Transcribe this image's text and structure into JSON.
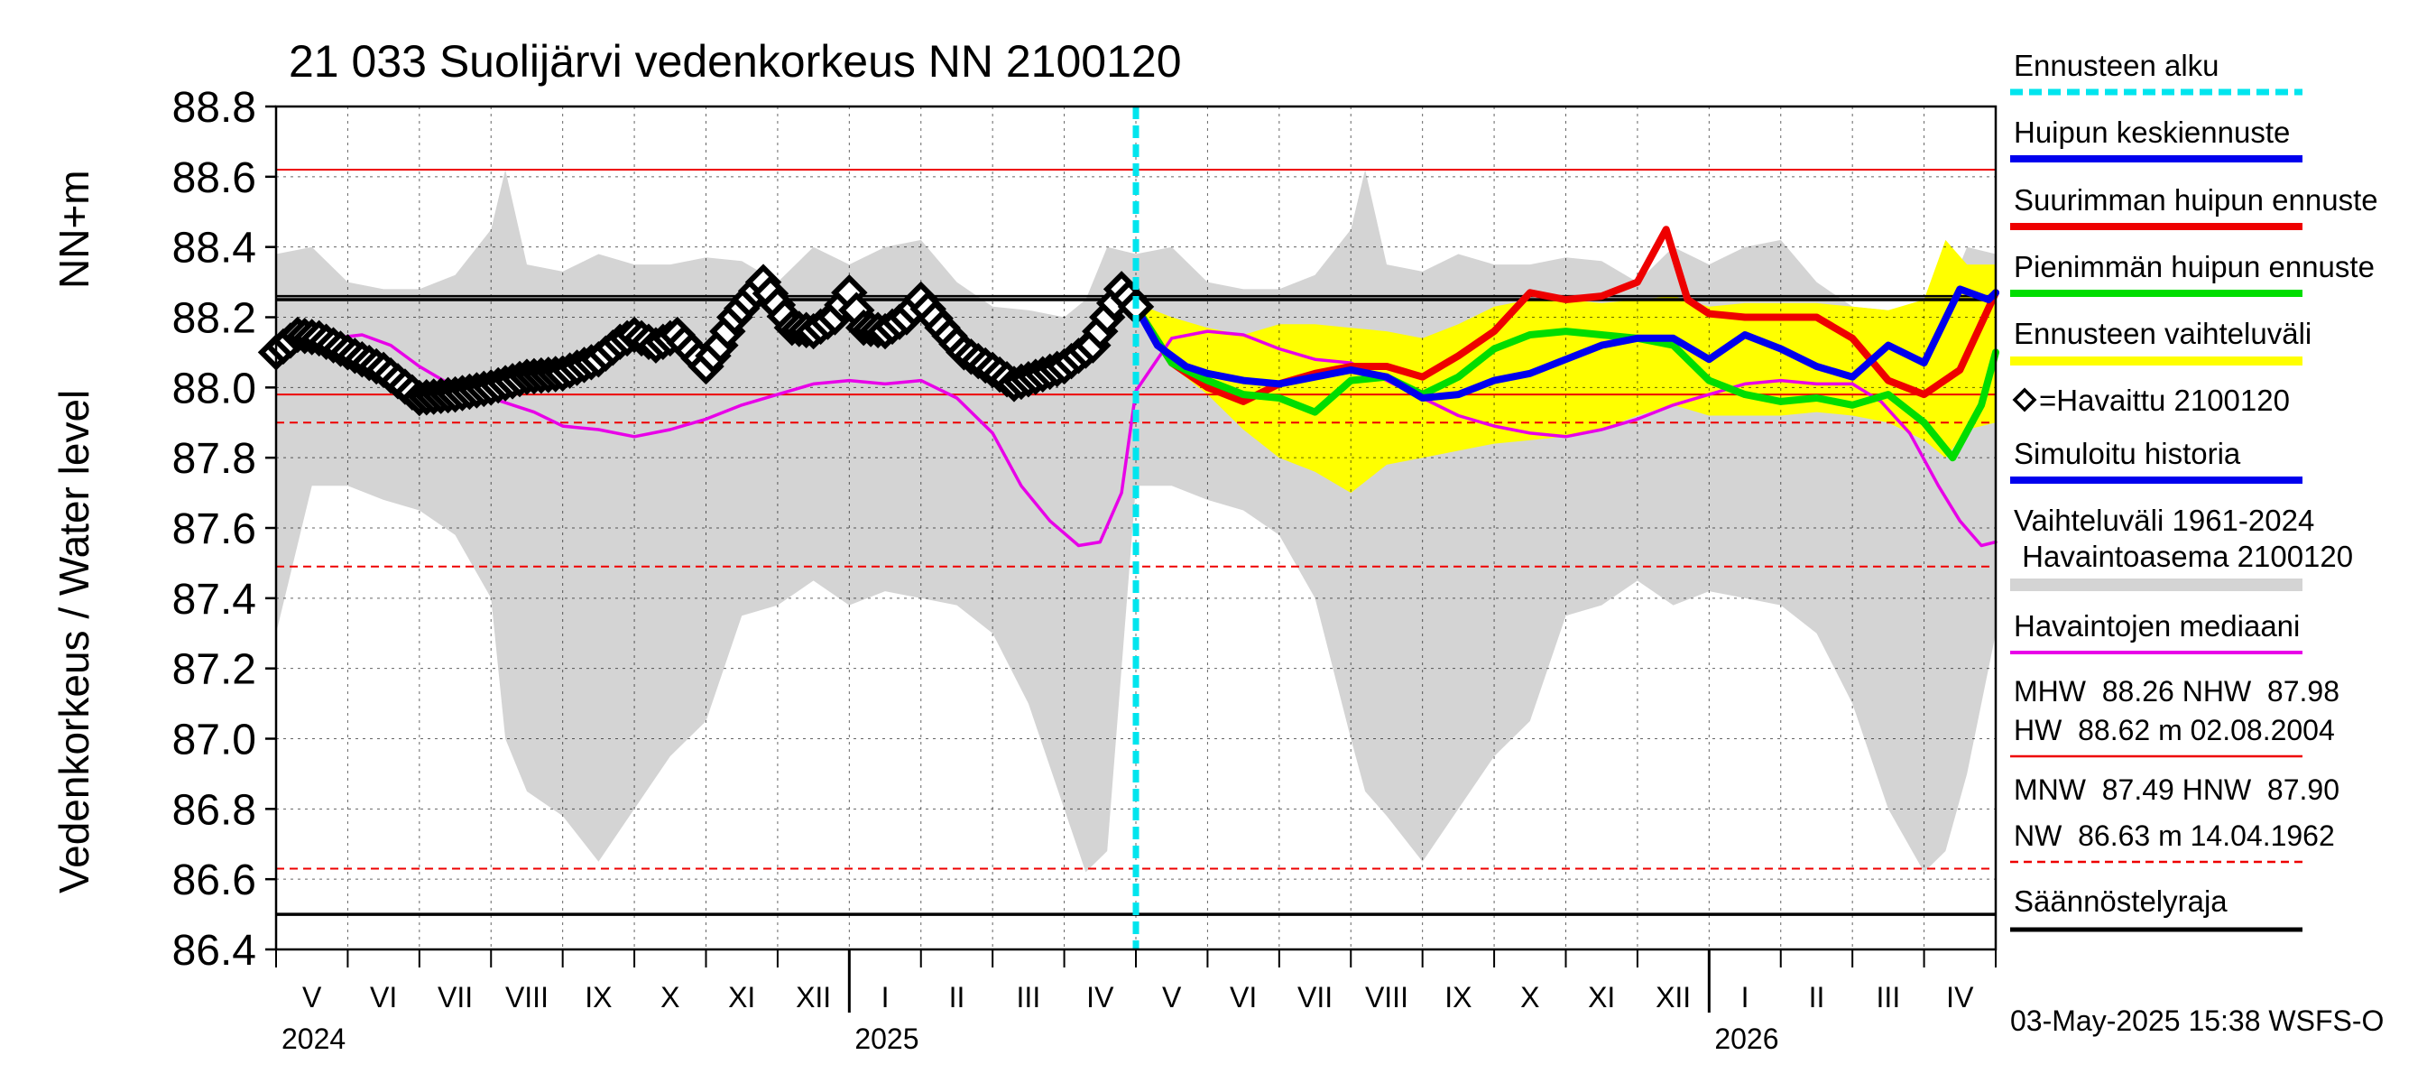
{
  "chart_data": {
    "type": "line",
    "title": "21 033 Suolijärvi vedenkorkeus NN 2100120",
    "ylabel_left": "Vedenkorkeus / Water level",
    "ylabel_right": "NN+m",
    "ylim": [
      86.4,
      88.8
    ],
    "yticks": [
      "88.8",
      "88.6",
      "88.4",
      "88.2",
      "88.0",
      "87.8",
      "87.6",
      "87.4",
      "87.2",
      "87.0",
      "86.8",
      "86.6",
      "86.4"
    ],
    "month_labels": [
      "V",
      "VI",
      "VII",
      "VIII",
      "IX",
      "X",
      "XI",
      "XII",
      "I",
      "II",
      "III",
      "IV",
      "V",
      "VI",
      "VII",
      "VIII",
      "IX",
      "X",
      "XI",
      "XII",
      "I",
      "II",
      "III",
      "IV"
    ],
    "year_labels": [
      "2024",
      "2025",
      "2026"
    ],
    "forecast_start_month": 12,
    "reference_lines": {
      "HW": 88.62,
      "MHW": 88.26,
      "NHW": 87.98,
      "HNW": 87.9,
      "MNW": 87.49,
      "NW": 86.63,
      "regulation_upper": 88.25,
      "regulation_lower": 86.5
    },
    "series": [
      {
        "name": "Havaittu 2100120",
        "color": "#000000",
        "x": [
          0,
          0.3,
          0.6,
          1.0,
          1.5,
          2.0,
          2.5,
          3.0,
          3.5,
          4.0,
          4.5,
          4.8,
          5.0,
          5.3,
          5.6,
          6.0,
          6.2,
          6.4,
          6.8,
          7.2,
          7.5,
          7.8,
          8.0,
          8.2,
          8.5,
          8.8,
          9.0,
          9.3,
          9.6,
          10.0,
          10.3,
          10.6,
          11.0,
          11.4,
          11.8,
          12.0
        ],
        "y": [
          88.1,
          88.15,
          88.14,
          88.1,
          88.05,
          87.97,
          87.98,
          88.0,
          88.03,
          88.04,
          88.08,
          88.13,
          88.15,
          88.12,
          88.15,
          88.06,
          88.12,
          88.2,
          88.3,
          88.17,
          88.16,
          88.2,
          88.27,
          88.17,
          88.16,
          88.2,
          88.25,
          88.17,
          88.1,
          88.05,
          88.01,
          88.03,
          88.06,
          88.12,
          88.28,
          88.23
        ]
      },
      {
        "name": "Havaintojen mediaani",
        "color": "#e800e8",
        "x": [
          0,
          0.3,
          0.8,
          1.2,
          1.6,
          2.0,
          2.5,
          3.0,
          3.6,
          4.0,
          4.5,
          5.0,
          5.5,
          6.0,
          6.5,
          7.0,
          7.5,
          8.0,
          8.5,
          9.0,
          9.5,
          10.0,
          10.4,
          10.8,
          11.2,
          11.5,
          11.8,
          12.0,
          12.5,
          13.0,
          13.5,
          14.0,
          14.5,
          15.0,
          15.5,
          16.0,
          16.5,
          17.0,
          17.5,
          18.0,
          18.5,
          19.0,
          19.5,
          20.0,
          20.5,
          21.0,
          21.5,
          22.0,
          22.4,
          22.8,
          23.2,
          23.5,
          23.8,
          24.0
        ],
        "y": [
          88.1,
          88.14,
          88.14,
          88.15,
          88.12,
          88.06,
          88.0,
          87.97,
          87.93,
          87.89,
          87.88,
          87.86,
          87.88,
          87.91,
          87.95,
          87.98,
          88.01,
          88.02,
          88.01,
          88.02,
          87.97,
          87.87,
          87.72,
          87.62,
          87.55,
          87.56,
          87.7,
          87.99,
          88.14,
          88.16,
          88.15,
          88.11,
          88.08,
          88.07,
          88.02,
          87.97,
          87.92,
          87.89,
          87.87,
          87.86,
          87.88,
          87.91,
          87.95,
          87.98,
          88.01,
          88.02,
          88.01,
          88.01,
          87.96,
          87.87,
          87.72,
          87.62,
          87.55,
          87.56
        ]
      },
      {
        "name": "Huipun keskiennuste",
        "color": "#0000ee",
        "x": [
          12.0,
          12.3,
          12.7,
          13.0,
          13.5,
          14.0,
          14.5,
          15.0,
          15.5,
          16.0,
          16.5,
          17.0,
          17.5,
          18.0,
          18.5,
          19.0,
          19.5,
          20.0,
          20.5,
          21.0,
          21.5,
          22.0,
          22.5,
          23.0,
          23.5,
          23.9,
          24.0
        ],
        "y": [
          88.23,
          88.12,
          88.06,
          88.04,
          88.02,
          88.01,
          88.03,
          88.05,
          88.03,
          87.97,
          87.98,
          88.02,
          88.04,
          88.08,
          88.12,
          88.14,
          88.14,
          88.08,
          88.15,
          88.11,
          88.06,
          88.03,
          88.12,
          88.07,
          88.28,
          88.25,
          88.27
        ]
      },
      {
        "name": "Suurimman huipun ennuste",
        "color": "#ee0000",
        "x": [
          12.0,
          12.5,
          13.0,
          13.5,
          14.0,
          14.5,
          15.0,
          15.5,
          16.0,
          16.5,
          17.0,
          17.5,
          18.0,
          18.5,
          19.0,
          19.4,
          19.7,
          20.0,
          20.5,
          21.0,
          21.5,
          22.0,
          22.5,
          23.0,
          23.5,
          24.0
        ],
        "y": [
          88.23,
          88.07,
          88.0,
          87.96,
          88.01,
          88.04,
          88.06,
          88.06,
          88.03,
          88.09,
          88.16,
          88.27,
          88.25,
          88.26,
          88.3,
          88.45,
          88.25,
          88.21,
          88.2,
          88.2,
          88.2,
          88.14,
          88.02,
          87.98,
          88.05,
          88.27
        ]
      },
      {
        "name": "Pienimmän huipun ennuste",
        "color": "#00dd00",
        "x": [
          12.0,
          12.5,
          13.0,
          13.5,
          14.0,
          14.5,
          15.0,
          15.5,
          16.0,
          16.5,
          17.0,
          17.5,
          18.0,
          18.5,
          19.0,
          19.5,
          20.0,
          20.5,
          21.0,
          21.5,
          22.0,
          22.5,
          23.0,
          23.4,
          23.8,
          24.0
        ],
        "y": [
          88.23,
          88.07,
          88.02,
          87.98,
          87.97,
          87.93,
          88.02,
          88.03,
          87.98,
          88.03,
          88.11,
          88.15,
          88.16,
          88.15,
          88.14,
          88.12,
          88.02,
          87.98,
          87.96,
          87.97,
          87.95,
          87.98,
          87.9,
          87.8,
          87.95,
          88.1
        ]
      }
    ],
    "bands": [
      {
        "name": "Vaihteluväli 1961-2024 Havaintoasema 2100120",
        "color": "#d4d4d4",
        "x": [
          0,
          0.5,
          1.0,
          1.5,
          2.0,
          2.5,
          3.0,
          3.2,
          3.5,
          4.0,
          4.5,
          5.0,
          5.5,
          6.0,
          6.5,
          7.0,
          7.5,
          8.0,
          8.5,
          9.0,
          9.5,
          10.0,
          10.5,
          11.0,
          11.3,
          11.6,
          12.0,
          12.5,
          13.0,
          13.5,
          14.0,
          14.5,
          15.0,
          15.2,
          15.5,
          16.0,
          16.5,
          17.0,
          17.5,
          18.0,
          18.5,
          19.0,
          19.5,
          20.0,
          20.5,
          21.0,
          21.5,
          22.0,
          22.5,
          23.0,
          23.3,
          23.6,
          24.0
        ],
        "upper": [
          88.38,
          88.4,
          88.3,
          88.28,
          88.28,
          88.32,
          88.45,
          88.62,
          88.35,
          88.33,
          88.38,
          88.35,
          88.35,
          88.37,
          88.36,
          88.3,
          88.4,
          88.35,
          88.4,
          88.42,
          88.3,
          88.23,
          88.22,
          88.2,
          88.25,
          88.4,
          88.38,
          88.4,
          88.3,
          88.28,
          88.28,
          88.32,
          88.45,
          88.62,
          88.35,
          88.33,
          88.38,
          88.35,
          88.35,
          88.37,
          88.36,
          88.3,
          88.4,
          88.35,
          88.4,
          88.42,
          88.3,
          88.23,
          88.22,
          88.2,
          88.25,
          88.4,
          88.38
        ],
        "lower": [
          87.3,
          87.72,
          87.72,
          87.68,
          87.65,
          87.58,
          87.4,
          87.0,
          86.85,
          86.78,
          86.65,
          86.8,
          86.95,
          87.05,
          87.35,
          87.38,
          87.45,
          87.38,
          87.42,
          87.4,
          87.38,
          87.3,
          87.1,
          86.8,
          86.62,
          86.68,
          87.72,
          87.72,
          87.68,
          87.65,
          87.58,
          87.4,
          87.0,
          86.85,
          86.78,
          86.65,
          86.8,
          86.95,
          87.05,
          87.35,
          87.38,
          87.45,
          87.38,
          87.42,
          87.4,
          87.38,
          87.3,
          87.1,
          86.8,
          86.62,
          86.68,
          86.9,
          87.3
        ]
      },
      {
        "name": "Ennusteen vaihteluväli",
        "color": "#ffff00",
        "x": [
          12.0,
          12.5,
          13.0,
          13.5,
          14.0,
          14.5,
          15.0,
          15.5,
          16.0,
          16.5,
          17.0,
          17.5,
          18.0,
          18.5,
          19.0,
          19.5,
          20.0,
          20.5,
          21.0,
          21.5,
          22.0,
          22.5,
          23.0,
          23.3,
          23.6,
          24.0
        ],
        "upper": [
          88.24,
          88.2,
          88.17,
          88.15,
          88.18,
          88.18,
          88.17,
          88.16,
          88.14,
          88.18,
          88.23,
          88.25,
          88.25,
          88.24,
          88.25,
          88.26,
          88.23,
          88.24,
          88.24,
          88.24,
          88.23,
          88.22,
          88.25,
          88.42,
          88.35,
          88.35
        ],
        "lower": [
          88.22,
          88.06,
          87.98,
          87.88,
          87.8,
          87.76,
          87.7,
          87.78,
          87.8,
          87.82,
          87.84,
          87.85,
          87.86,
          87.88,
          87.92,
          87.95,
          87.92,
          87.92,
          87.92,
          87.93,
          87.92,
          87.9,
          87.85,
          87.8,
          87.88,
          87.9
        ]
      }
    ]
  },
  "legend": {
    "forecast_start": "Ennusteen alku",
    "peak_mean": "Huipun keskiennuste",
    "peak_max": "Suurimman huipun ennuste",
    "peak_min": "Pienimmän huipun ennuste",
    "forecast_range": "Ennusteen vaihteluväli",
    "observed": "=Havaittu 2100120",
    "simulated": "Simuloitu historia",
    "range_line1": "Vaihteluväli 1961-2024",
    "range_line2": " Havaintoasema 2100120",
    "median": "Havaintojen mediaani",
    "stats1_line1": "MHW  88.26 NHW  87.98",
    "stats1_line2": "HW  88.62 m 02.08.2004",
    "stats2_line1": "MNW  87.49 HNW  87.90",
    "stats2_line2": "NW  86.63 m 14.04.1962",
    "regulation": "Säännöstelyraja"
  },
  "footer": "03-May-2025 15:38 WSFS-O",
  "colors": {
    "grey_band": "#d4d4d4",
    "yellow_band": "#ffff00",
    "cyan": "#00e5ee",
    "red": "#ee0000",
    "blue": "#0000ee",
    "green": "#00dd00",
    "magenta": "#e800e8"
  }
}
